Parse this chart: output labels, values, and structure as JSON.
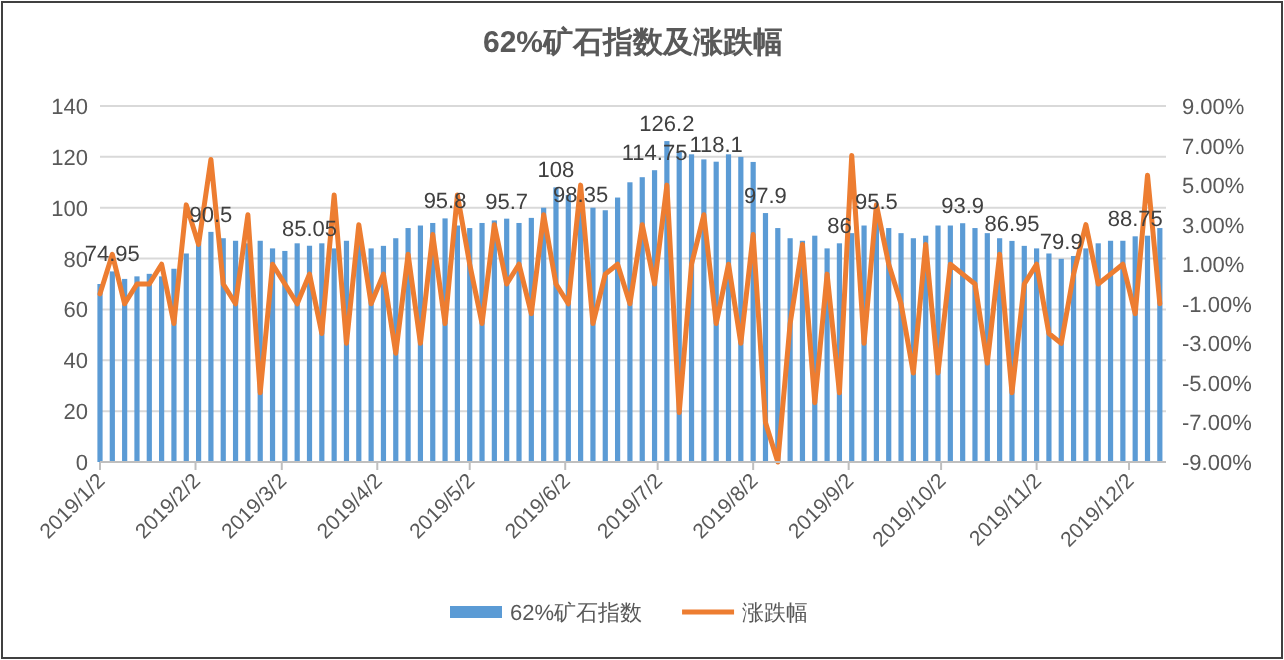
{
  "chart_data": {
    "type": "bar",
    "title": "62%矿石指数及涨跌幅",
    "x": [
      "2019-01-02",
      "2019-01-06",
      "2019-01-10",
      "2019-01-14",
      "2019-01-18",
      "2019-01-22",
      "2019-01-26",
      "2019-01-30",
      "2019-02-03",
      "2019-02-07",
      "2019-02-11",
      "2019-02-15",
      "2019-02-19",
      "2019-02-23",
      "2019-02-27",
      "2019-03-03",
      "2019-03-07",
      "2019-03-11",
      "2019-03-15",
      "2019-03-19",
      "2019-03-23",
      "2019-03-27",
      "2019-03-31",
      "2019-04-04",
      "2019-04-08",
      "2019-04-12",
      "2019-04-16",
      "2019-04-20",
      "2019-04-24",
      "2019-04-28",
      "2019-05-02",
      "2019-05-06",
      "2019-05-10",
      "2019-05-14",
      "2019-05-18",
      "2019-05-22",
      "2019-05-26",
      "2019-05-30",
      "2019-06-03",
      "2019-06-07",
      "2019-06-11",
      "2019-06-15",
      "2019-06-19",
      "2019-06-23",
      "2019-06-27",
      "2019-07-01",
      "2019-07-05",
      "2019-07-09",
      "2019-07-13",
      "2019-07-17",
      "2019-07-21",
      "2019-07-25",
      "2019-07-29",
      "2019-08-02",
      "2019-08-06",
      "2019-08-10",
      "2019-08-14",
      "2019-08-18",
      "2019-08-22",
      "2019-08-26",
      "2019-08-30",
      "2019-09-03",
      "2019-09-07",
      "2019-09-11",
      "2019-09-15",
      "2019-09-19",
      "2019-09-23",
      "2019-09-27",
      "2019-10-01",
      "2019-10-05",
      "2019-10-09",
      "2019-10-13",
      "2019-10-17",
      "2019-10-21",
      "2019-10-25",
      "2019-10-29",
      "2019-11-02",
      "2019-11-06",
      "2019-11-10",
      "2019-11-14",
      "2019-11-18",
      "2019-11-22",
      "2019-11-26",
      "2019-11-30",
      "2019-12-04",
      "2019-12-08",
      "2019-12-12"
    ],
    "series": [
      {
        "name": "62%矿石指数",
        "color": "#5b9bd5",
        "values": [
          70,
          74.95,
          72,
          73,
          74,
          73,
          76,
          82,
          86,
          90.5,
          88,
          87,
          86,
          87,
          84,
          83,
          86,
          85.05,
          86,
          84,
          87,
          86,
          84,
          85,
          88,
          92,
          93,
          94,
          95.8,
          93,
          92,
          94,
          95,
          95.7,
          94,
          96,
          100,
          108,
          105,
          98.35,
          100,
          99,
          104,
          110,
          112,
          114.75,
          126.2,
          122,
          121,
          119,
          118.1,
          121,
          120,
          118,
          97.9,
          92,
          88,
          87,
          89,
          84,
          86,
          90,
          93,
          95.5,
          92,
          90,
          88,
          89,
          93,
          93,
          93.9,
          92,
          90,
          88,
          86.95,
          85,
          84,
          82,
          79.9,
          81,
          84,
          86,
          87,
          87,
          88.75,
          89,
          92
        ],
        "value_labels": [
          null,
          "74.95",
          null,
          null,
          null,
          null,
          null,
          null,
          null,
          "90.5",
          null,
          null,
          null,
          null,
          null,
          null,
          null,
          "85.05",
          null,
          null,
          null,
          null,
          null,
          null,
          null,
          null,
          null,
          null,
          "95.8",
          null,
          null,
          null,
          null,
          "95.7",
          null,
          null,
          null,
          "108",
          null,
          "98.35",
          null,
          null,
          null,
          null,
          null,
          "114.75",
          "126.2",
          null,
          null,
          null,
          "118.1",
          null,
          null,
          null,
          "97.9",
          null,
          null,
          null,
          null,
          null,
          "86",
          null,
          null,
          "95.5",
          null,
          null,
          null,
          null,
          null,
          null,
          "93.9",
          null,
          null,
          null,
          "86.95",
          null,
          null,
          null,
          "79.9",
          null,
          null,
          null,
          null,
          null,
          "88.75",
          null,
          null
        ]
      },
      {
        "name": "涨跌幅",
        "type": "line",
        "axis": "y2",
        "color": "#ed7d31",
        "values": [
          -0.5,
          1.5,
          -1,
          0,
          0,
          1,
          -2,
          4,
          2,
          6.3,
          0,
          -1,
          3.5,
          -5.5,
          1,
          0,
          -1,
          0.5,
          -2.5,
          4.5,
          -3,
          3,
          -1,
          0.5,
          -3.5,
          1.5,
          -3,
          2.5,
          -2,
          4.5,
          1,
          -2,
          3,
          0,
          1,
          -1.5,
          3.5,
          0,
          -1,
          5,
          -2,
          0.5,
          1,
          -1,
          3,
          0,
          5,
          -6.5,
          1,
          3.5,
          -2,
          1,
          -3,
          2.5,
          -7,
          -9,
          -2,
          2,
          -6,
          0.5,
          -5.5,
          6.5,
          -3,
          4,
          1,
          -1,
          -4.5,
          2,
          -4.5,
          1,
          0.5,
          0,
          -4,
          1.5,
          -5.5,
          0,
          1,
          -2.5,
          -3,
          0.5,
          3,
          0,
          0.5,
          1,
          -1.5,
          5.5,
          -1
        ]
      }
    ],
    "xlim": [
      "2019-01-02",
      "2019-12-14"
    ],
    "xticks": [
      {
        "value": "2019-01-02",
        "label": "2019/1/2"
      },
      {
        "value": "2019-02-02",
        "label": "2019/2/2"
      },
      {
        "value": "2019-03-02",
        "label": "2019/3/2"
      },
      {
        "value": "2019-04-02",
        "label": "2019/4/2"
      },
      {
        "value": "2019-05-02",
        "label": "2019/5/2"
      },
      {
        "value": "2019-06-02",
        "label": "2019/6/2"
      },
      {
        "value": "2019-07-02",
        "label": "2019/7/2"
      },
      {
        "value": "2019-08-02",
        "label": "2019/8/2"
      },
      {
        "value": "2019-09-02",
        "label": "2019/9/2"
      },
      {
        "value": "2019-10-02",
        "label": "2019/10/2"
      },
      {
        "value": "2019-11-02",
        "label": "2019/11/2"
      },
      {
        "value": "2019-12-02",
        "label": "2019/12/2"
      }
    ],
    "ylim": [
      0,
      140
    ],
    "yticks": [
      0,
      20,
      40,
      60,
      80,
      100,
      120,
      140
    ],
    "y2lim": [
      -9,
      9
    ],
    "y2ticks": [
      {
        "value": -9,
        "label": "-9.00%"
      },
      {
        "value": -7,
        "label": "-7.00%"
      },
      {
        "value": -5,
        "label": "-5.00%"
      },
      {
        "value": -3,
        "label": "-3.00%"
      },
      {
        "value": -1,
        "label": "-1.00%"
      },
      {
        "value": 1,
        "label": "1.00%"
      },
      {
        "value": 3,
        "label": "3.00%"
      },
      {
        "value": 5,
        "label": "5.00%"
      },
      {
        "value": 7,
        "label": "7.00%"
      },
      {
        "value": 9,
        "label": "9.00%"
      }
    ],
    "grid": "y",
    "legend": "bottom"
  }
}
